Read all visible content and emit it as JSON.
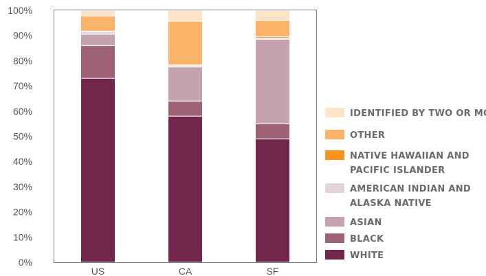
{
  "chart_data": {
    "type": "bar",
    "stacked": true,
    "categories": [
      "US",
      "CA",
      "SF"
    ],
    "ylim": [
      0,
      100
    ],
    "yticks": [
      "0%",
      "10%",
      "20%",
      "30%",
      "40%",
      "50%",
      "60%",
      "70%",
      "80%",
      "90%",
      "100%"
    ],
    "legend_position": "right",
    "series": [
      {
        "name": "WHITE",
        "color": "#72264B",
        "values": [
          73,
          58,
          49
        ]
      },
      {
        "name": "BLACK",
        "color": "#9E6275",
        "values": [
          13,
          6,
          6
        ]
      },
      {
        "name": "ASIAN",
        "color": "#C4A3AD",
        "values": [
          4.5,
          13.5,
          33.5
        ]
      },
      {
        "name": "AMERICAN INDIAN AND ALASKA NATIVE",
        "color": "#E2D4D8",
        "values": [
          1,
          0.5,
          0.5
        ]
      },
      {
        "name": "NATIVE HAWAIIAN AND PACIFIC ISLANDER",
        "color": "#F7941E",
        "values": [
          0.2,
          0.4,
          0.5
        ]
      },
      {
        "name": "OTHER",
        "color": "#FBB36A",
        "values": [
          6,
          17.3,
          6.5
        ]
      },
      {
        "name": "IDENTIFIED BY TWO OR MORE",
        "color": "#FDE3C7",
        "values": [
          2.3,
          4.3,
          4
        ]
      }
    ],
    "legend": [
      {
        "lines": [
          "IDENTIFIED BY TWO OR MORE"
        ],
        "series": 6
      },
      {
        "lines": [
          "OTHER"
        ],
        "series": 5
      },
      {
        "lines": [
          "NATIVE HAWAIIAN AND",
          "PACIFIC ISLANDER"
        ],
        "series": 4
      },
      {
        "lines": [
          "AMERICAN INDIAN AND",
          "ALASKA NATIVE"
        ],
        "series": 3
      },
      {
        "lines": [
          "ASIAN"
        ],
        "series": 2
      },
      {
        "lines": [
          "BLACK"
        ],
        "series": 1
      },
      {
        "lines": [
          "WHITE"
        ],
        "series": 0
      }
    ]
  }
}
